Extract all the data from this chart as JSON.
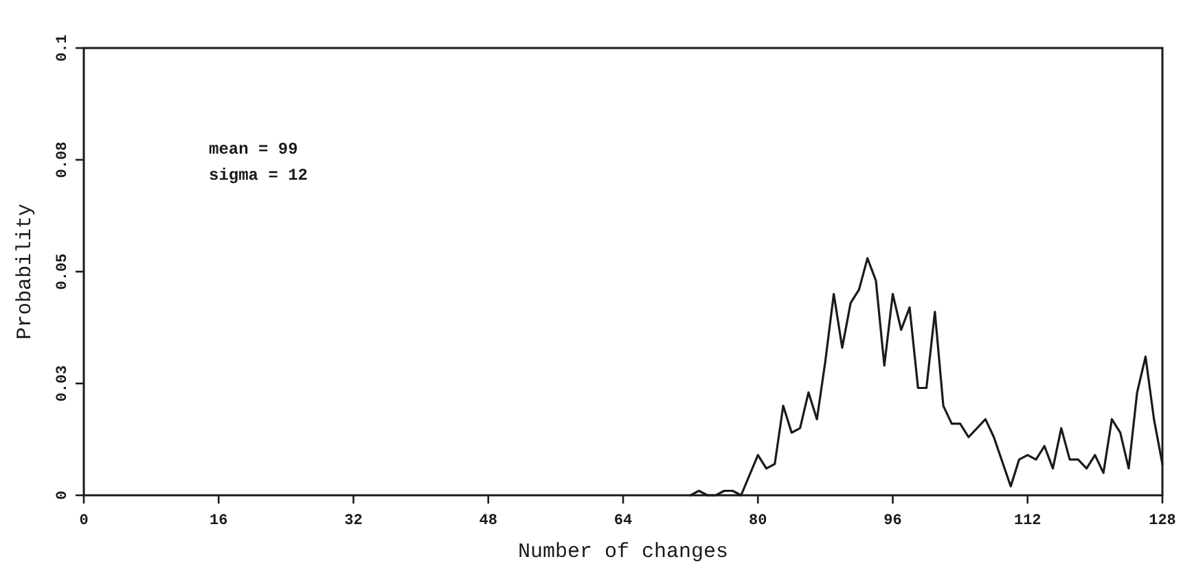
{
  "chart_data": {
    "type": "line",
    "xlabel": "Number of changes",
    "ylabel": "Probability",
    "annotations": [
      "mean = 99",
      "sigma = 12"
    ],
    "xlim": [
      0,
      128
    ],
    "xticks": [
      0,
      16,
      32,
      48,
      64,
      80,
      96,
      112,
      128
    ],
    "ylim": [
      0,
      0.1
    ],
    "yticks": [
      0,
      {
        "value": 0.025,
        "label": "0.03"
      },
      0.05,
      {
        "value": 0.075,
        "label": "0.08"
      },
      0.1
    ],
    "line_style": "solid",
    "series": [
      {
        "color": "#1a1a1a",
        "x": [
          72,
          73,
          74,
          75,
          76,
          77,
          78,
          80,
          81,
          82,
          83,
          84,
          85,
          86,
          87,
          88,
          89,
          90,
          91,
          92,
          93,
          94,
          95,
          96,
          97,
          98,
          99,
          100,
          101,
          102,
          103,
          104,
          105,
          107,
          108,
          110,
          111,
          112,
          113,
          114,
          115,
          116,
          117,
          118,
          119,
          120,
          121,
          122,
          123,
          124,
          125,
          126,
          127,
          128
        ],
        "values": [
          0,
          0.001,
          0,
          0,
          0.001,
          0.001,
          0,
          0.009,
          0.006,
          0.007,
          0.02,
          0.014,
          0.015,
          0.023,
          0.017,
          0.03,
          0.045,
          0.033,
          0.043,
          0.046,
          0.053,
          0.048,
          0.029,
          0.045,
          0.037,
          0.042,
          0.024,
          0.024,
          0.041,
          0.02,
          0.016,
          0.016,
          0.013,
          0.017,
          0.013,
          0.002,
          0.008,
          0.009,
          0.008,
          0.011,
          0.006,
          0.015,
          0.008,
          0.008,
          0.006,
          0.009,
          0.005,
          0.017,
          0.014,
          0.006,
          0.023,
          0.031,
          0.017,
          0.007
        ]
      }
    ]
  }
}
